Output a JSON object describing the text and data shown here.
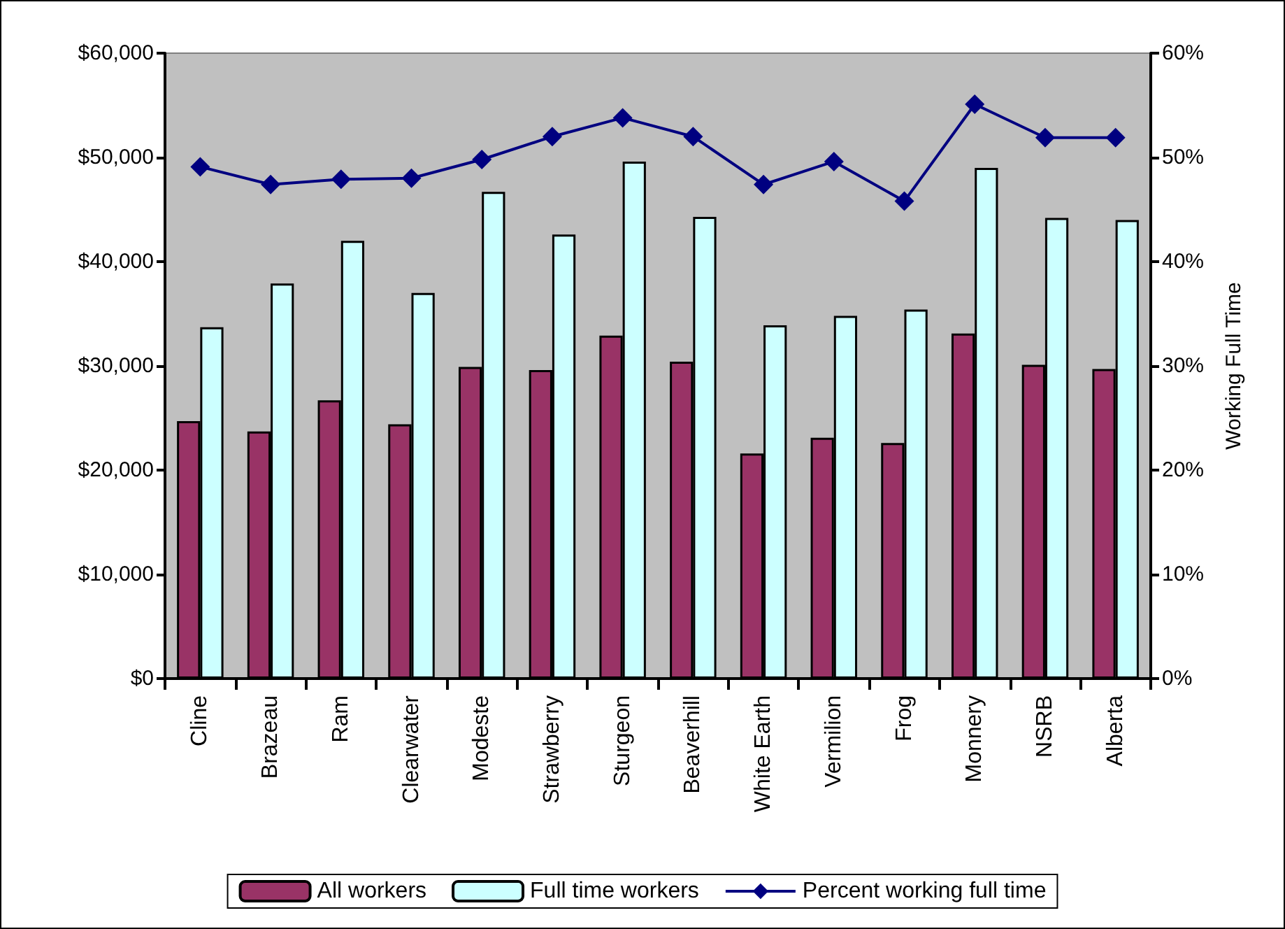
{
  "chart_data": {
    "type": "bar",
    "categories": [
      "Cline",
      "Brazeau",
      "Ram",
      "Clearwater",
      "Modeste",
      "Strawberry",
      "Sturgeon",
      "Beaverhill",
      "White Earth",
      "Vermilion",
      "Frog",
      "Monnery",
      "NSRB",
      "Alberta"
    ],
    "series": [
      {
        "name": "All workers",
        "color": "#993366",
        "values": [
          24700,
          23700,
          26700,
          24400,
          29900,
          29600,
          32900,
          30400,
          21600,
          23100,
          22600,
          33100,
          30100,
          29700
        ]
      },
      {
        "name": "Full time workers",
        "color": "#ccffff",
        "values": [
          33700,
          37900,
          42000,
          37000,
          46700,
          42600,
          49600,
          44300,
          33900,
          34800,
          35400,
          49000,
          44200,
          44000
        ]
      },
      {
        "name": "Percent working full time",
        "type": "line",
        "axis": "y2",
        "color": "#000080",
        "marker": "diamond",
        "values": [
          49.1,
          47.4,
          47.9,
          48.0,
          49.8,
          52.0,
          53.8,
          52.0,
          47.4,
          49.6,
          45.8,
          55.1,
          51.9,
          51.9
        ]
      }
    ],
    "y2label": "Working Full Time",
    "ylim": [
      0,
      60000
    ],
    "yticks": [
      {
        "value": 0,
        "label": "$0"
      },
      {
        "value": 10000,
        "label": "$10,000"
      },
      {
        "value": 20000,
        "label": "$20,000"
      },
      {
        "value": 30000,
        "label": "$30,000"
      },
      {
        "value": 40000,
        "label": "$40,000"
      },
      {
        "value": 50000,
        "label": "$50,000"
      },
      {
        "value": 60000,
        "label": "$60,000"
      }
    ],
    "y2lim": [
      0,
      60
    ],
    "y2ticks": [
      {
        "value": 0,
        "label": "0%"
      },
      {
        "value": 10,
        "label": "10%"
      },
      {
        "value": 20,
        "label": "20%"
      },
      {
        "value": 30,
        "label": "30%"
      },
      {
        "value": 40,
        "label": "40%"
      },
      {
        "value": 50,
        "label": "50%"
      },
      {
        "value": 60,
        "label": "60%"
      }
    ],
    "grid": false,
    "legend": "bottom"
  }
}
